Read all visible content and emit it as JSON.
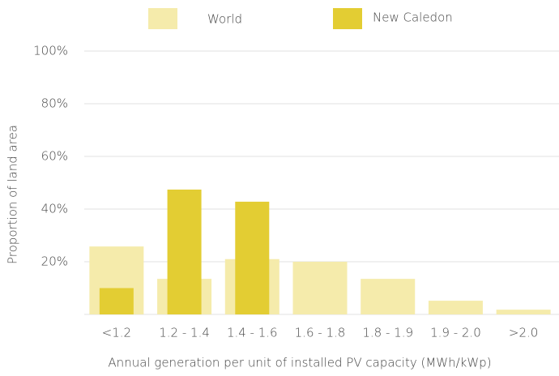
{
  "chart_data": {
    "type": "bar",
    "x_label": "Annual generation per unit of installed PV capacity (MWh/kWp)",
    "y_label": "Proportion of land area",
    "categories": [
      "<1.2",
      "1.2 - 1.4",
      "1.4 - 1.6",
      "1.6 - 1.8",
      "1.8 - 1.9",
      "1.9 - 2.0",
      ">2.0"
    ],
    "series": [
      {
        "name": "World",
        "color": "#f5ebab",
        "values": [
          25.8,
          13.5,
          21,
          20,
          13.5,
          5.2,
          1.8
        ]
      },
      {
        "name": "New Caledon",
        "color": "#e3cd33",
        "values": [
          10,
          47.4,
          42.8,
          0,
          0,
          0,
          0
        ]
      }
    ],
    "ylim": [
      0,
      100
    ],
    "yticks": [
      {
        "value": 20,
        "label": "20%"
      },
      {
        "value": 40,
        "label": "40%"
      },
      {
        "value": 60,
        "label": "60%"
      },
      {
        "value": 80,
        "label": "80%"
      },
      {
        "value": 100,
        "label": "100%"
      }
    ],
    "grid": true
  }
}
